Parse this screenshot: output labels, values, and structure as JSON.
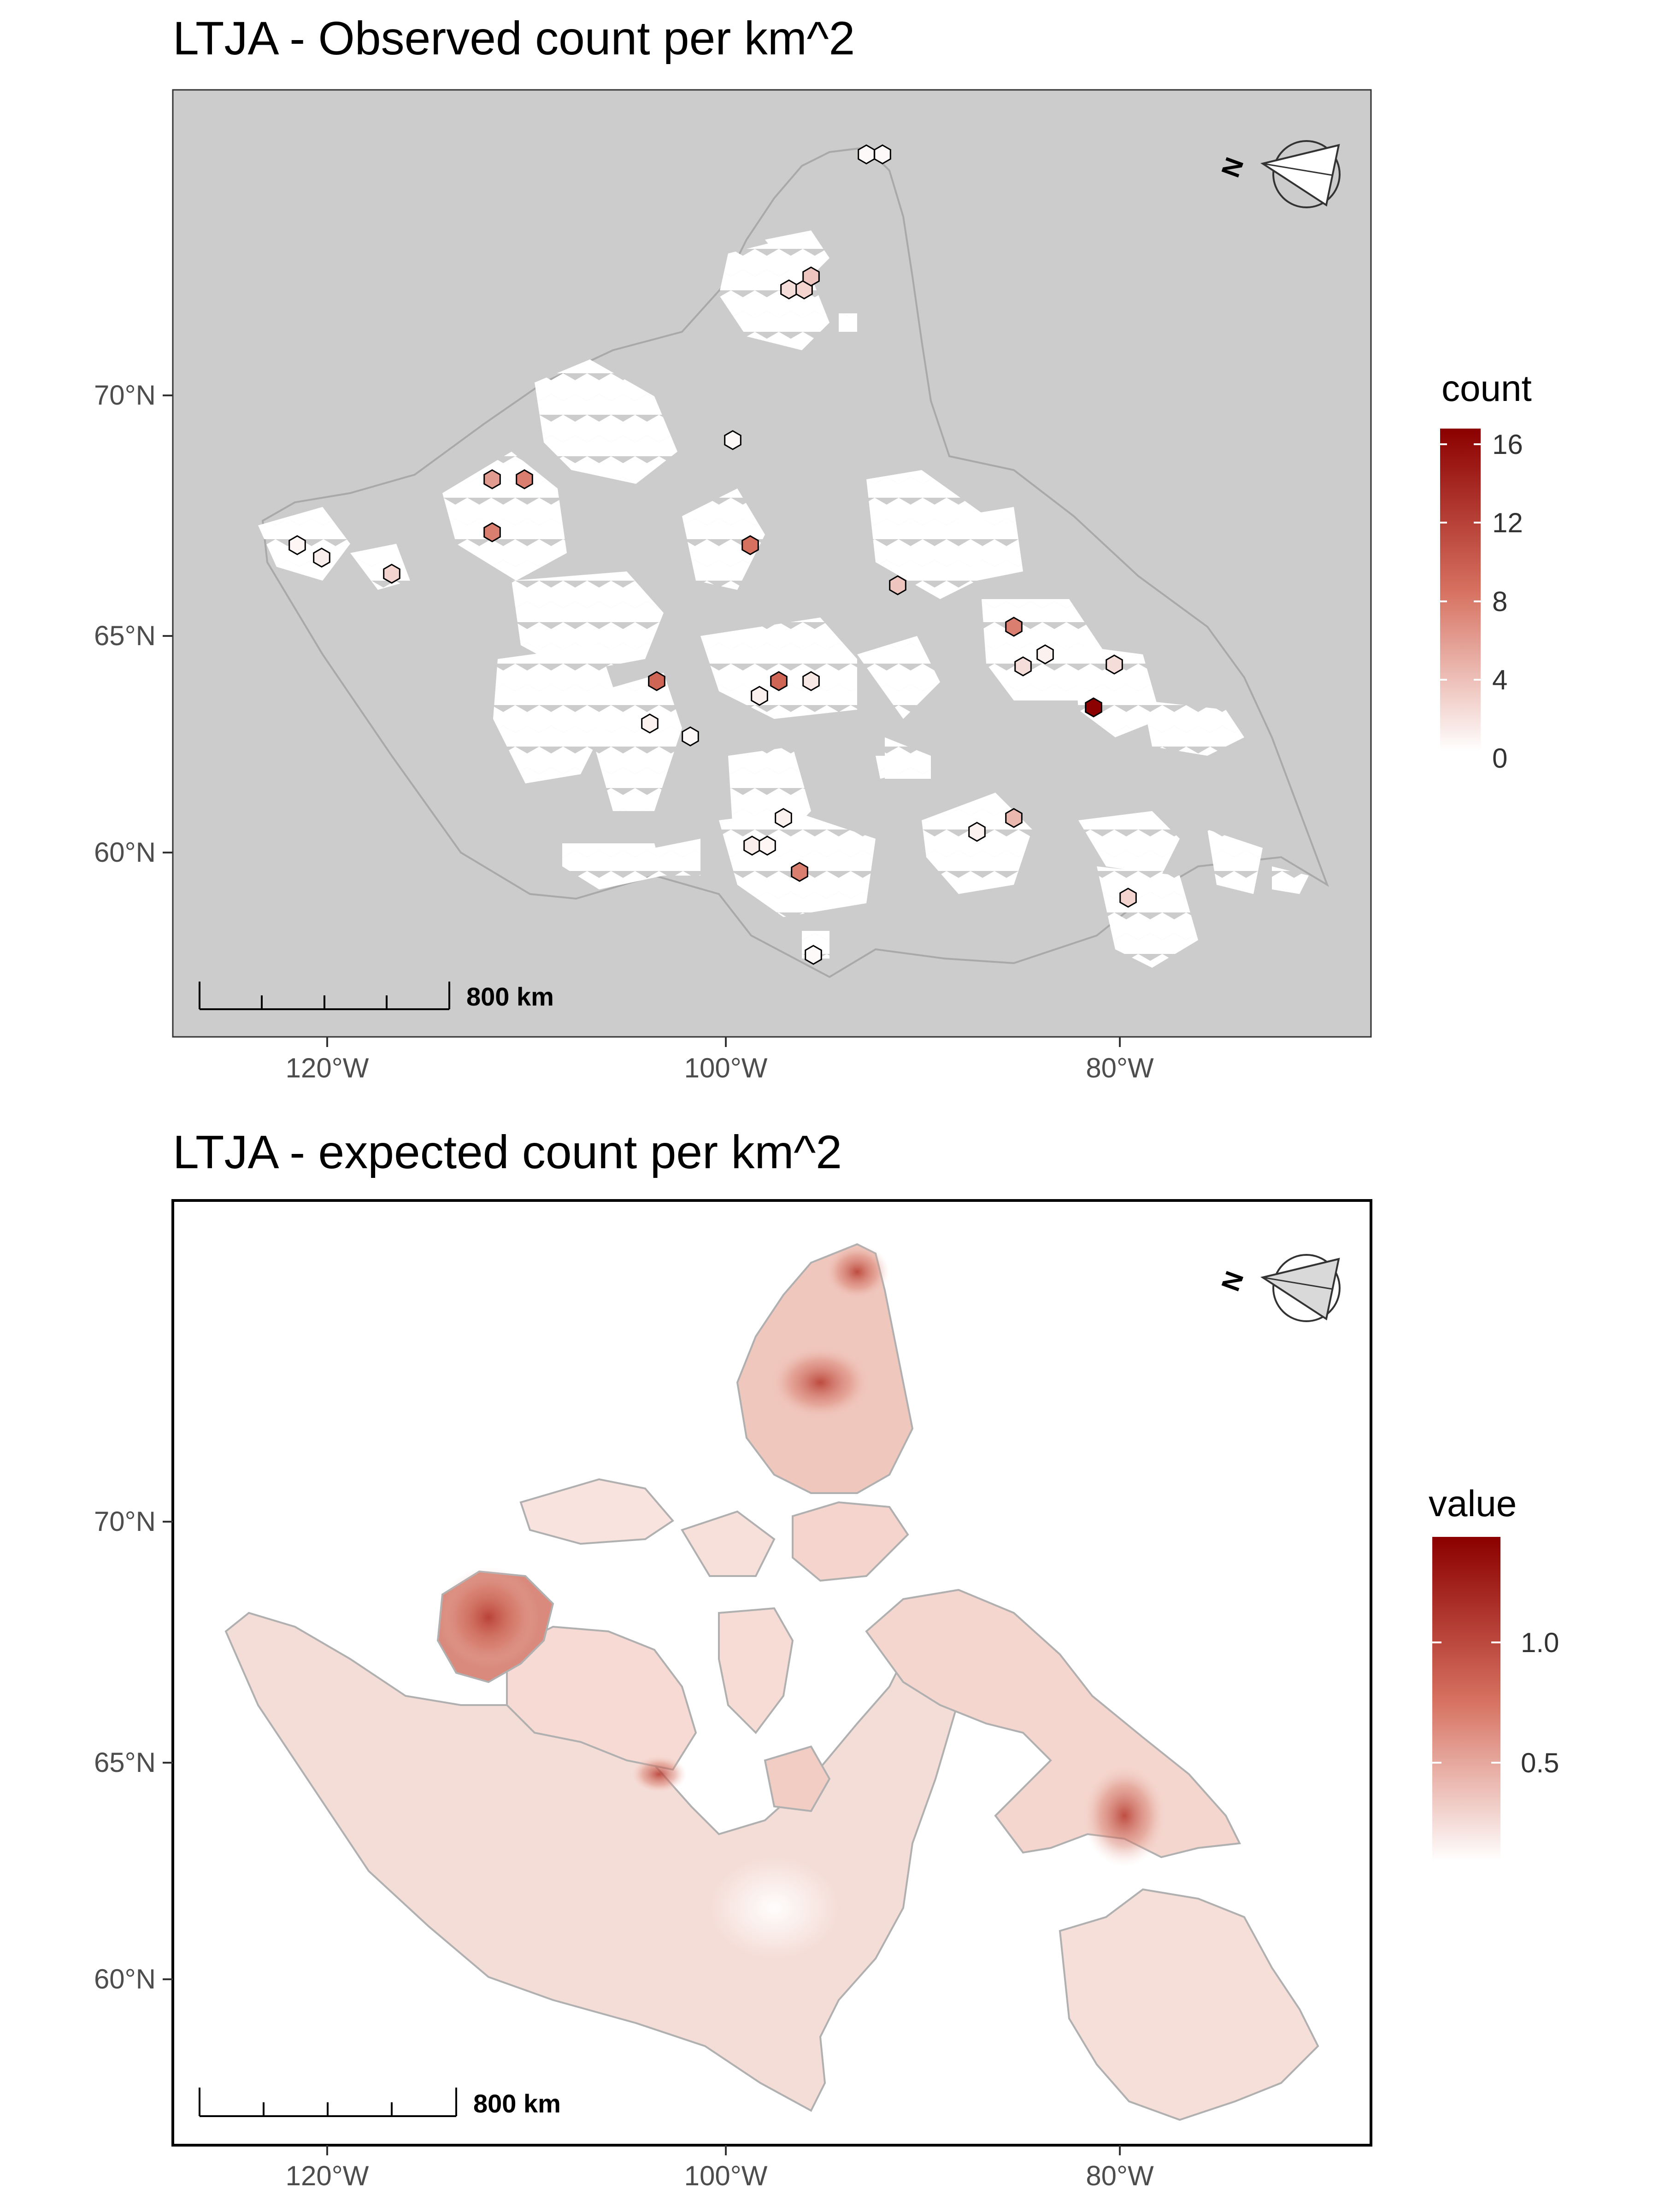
{
  "panels": [
    {
      "title": "LTJA - Observed count per km^2",
      "x_ticks": [
        "120°W",
        "100°W",
        "80°W"
      ],
      "y_ticks": [
        "70°N",
        "65°N",
        "60°N"
      ],
      "legend": {
        "title": "count",
        "labels": [
          "16",
          "12",
          "8",
          "4",
          "0"
        ],
        "range": [
          0,
          16.5
        ]
      },
      "scale_bar_label": "800 km",
      "north_arrow_label": "N",
      "background": "#cccccc"
    },
    {
      "title": "LTJA - expected count per km^2",
      "x_ticks": [
        "120°W",
        "100°W",
        "80°W"
      ],
      "y_ticks": [
        "70°N",
        "65°N",
        "60°N"
      ],
      "legend": {
        "title": "value",
        "labels": [
          "1.0",
          "0.5"
        ],
        "range": [
          0.05,
          1.45
        ]
      },
      "scale_bar_label": "800 km",
      "north_arrow_label": "N",
      "background": "#ffffff"
    }
  ],
  "colors": {
    "low": "#ffffff",
    "mid": "#d6705f",
    "high": "#8b0000",
    "land_edge": "#a0a0a0"
  }
}
